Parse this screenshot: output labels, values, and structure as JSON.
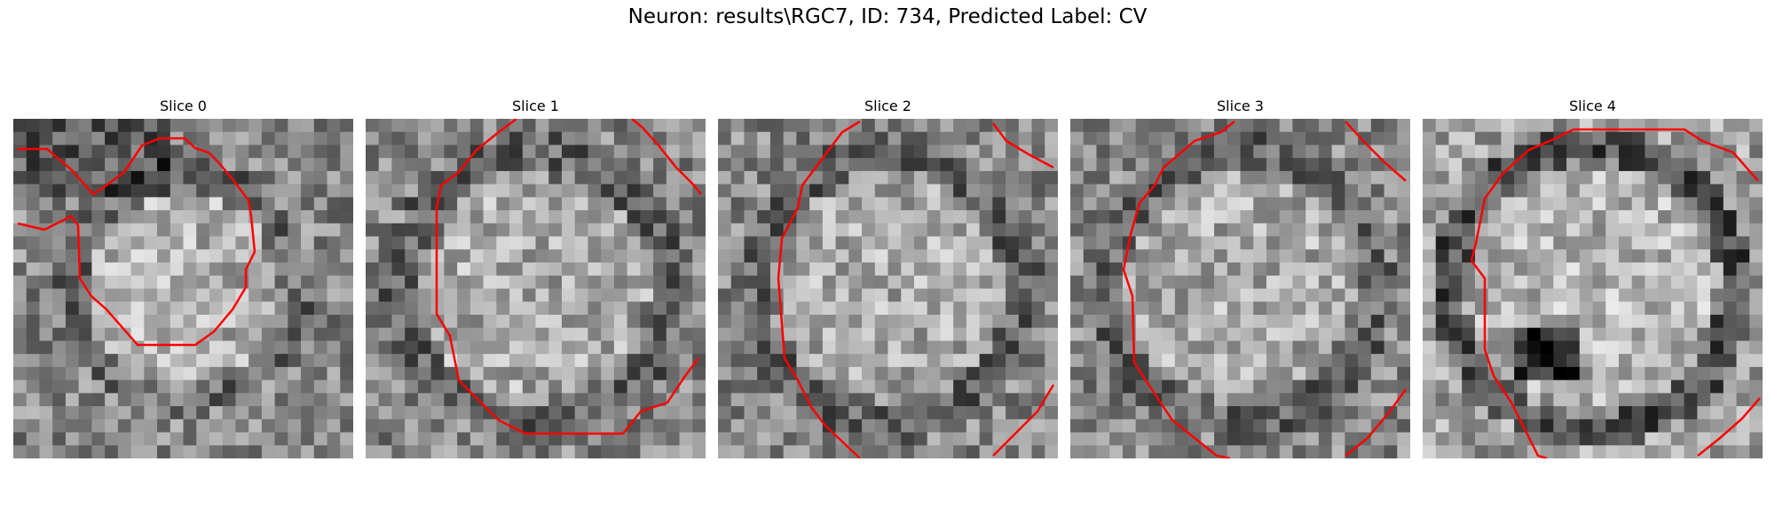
{
  "figure": {
    "title": "Neuron: results\\RGC7, ID: 734, Predicted Label: CV"
  },
  "colors": {
    "contour": "#ff0000"
  },
  "slices": [
    {
      "title": "Slice 0"
    },
    {
      "title": "Slice 1"
    },
    {
      "title": "Slice 2"
    },
    {
      "title": "Slice 3"
    },
    {
      "title": "Slice 4"
    }
  ]
}
